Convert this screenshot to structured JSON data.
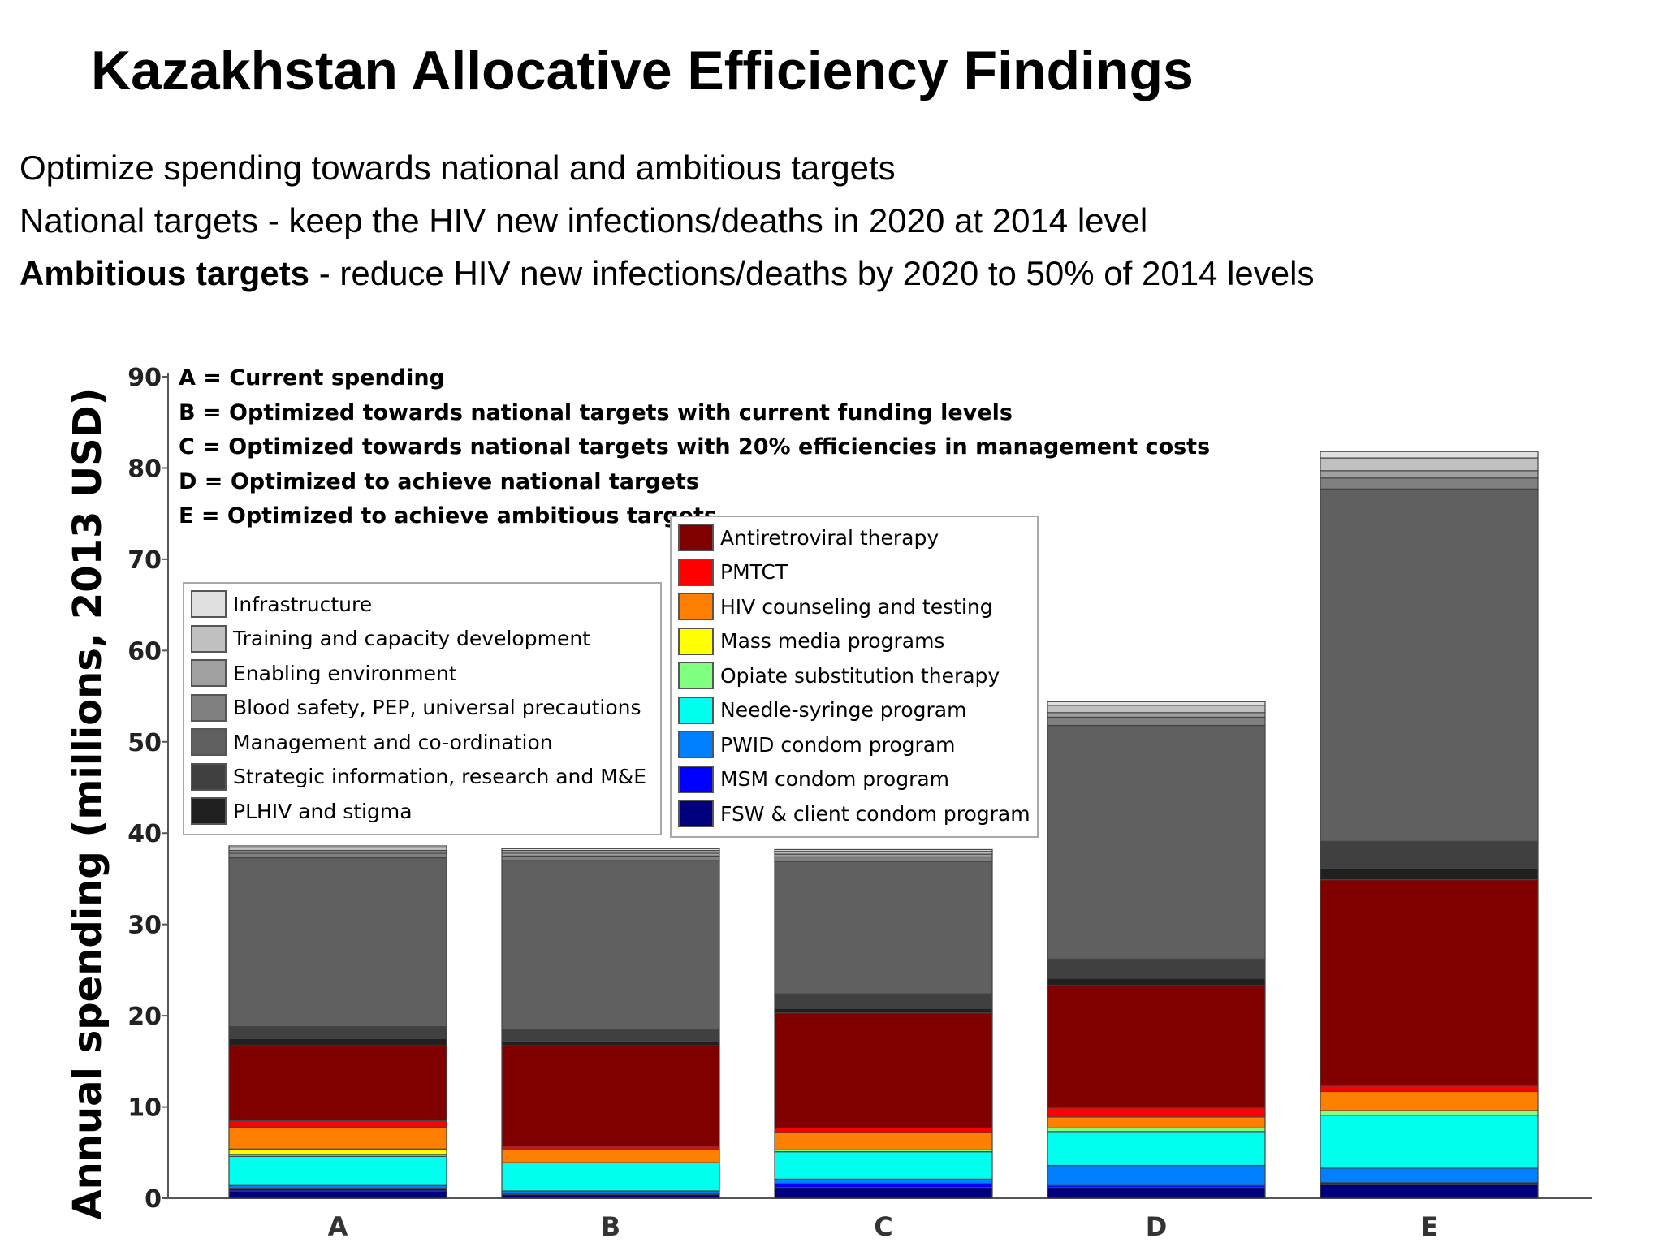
{
  "header": {
    "title": "Kazakhstan Allocative Efficiency Findings",
    "line1": "Optimize spending towards national and ambitious targets",
    "line2": "National targets - keep the HIV new infections/deaths in 2020 at 2014 level",
    "line3_bold": "Ambitious targets",
    "line3_rest": " - reduce HIV new infections/deaths by 2020 to 50% of 2014 levels"
  },
  "chart_data": {
    "type": "bar",
    "stacked": true,
    "title": "",
    "xlabel": "",
    "ylabel": "Annual spending (millions, 2013 USD)",
    "ylim": [
      0,
      90
    ],
    "yticks": [
      0,
      10,
      20,
      30,
      40,
      50,
      60,
      70,
      80,
      90
    ],
    "categories": [
      "A",
      "B",
      "C",
      "D",
      "E"
    ],
    "scenario_labels": [
      "A = Current spending",
      "B = Optimized towards national targets with current funding levels",
      "C = Optimized towards national targets with 20% efficiencies in management costs",
      "D = Optimized to achieve national targets",
      "E = Optimized to achieve ambitious targets"
    ],
    "series": [
      {
        "name": "FSW & client condom program",
        "color": "#00007f",
        "values": [
          0.8,
          0.4,
          1.2,
          1.2,
          1.5
        ]
      },
      {
        "name": "MSM condom program",
        "color": "#0000ff",
        "values": [
          0.3,
          0.1,
          0.4,
          0.2,
          0.2
        ]
      },
      {
        "name": "PWID condom program",
        "color": "#0080ff",
        "values": [
          0.3,
          0.3,
          0.5,
          2.2,
          1.6
        ]
      },
      {
        "name": "Needle-syringe program",
        "color": "#00ffee",
        "values": [
          3.2,
          3.1,
          3.0,
          3.7,
          5.8
        ]
      },
      {
        "name": "Opiate substitution therapy",
        "color": "#80ff80",
        "values": [
          0.2,
          0.0,
          0.2,
          0.4,
          0.5
        ]
      },
      {
        "name": "Mass media programs",
        "color": "#ffff00",
        "values": [
          0.6,
          0.0,
          0.0,
          0.0,
          0.0
        ]
      },
      {
        "name": "HIV counseling and testing",
        "color": "#ff8000",
        "values": [
          2.4,
          1.5,
          1.9,
          1.2,
          2.1
        ]
      },
      {
        "name": "PMTCT",
        "color": "#ff0000",
        "values": [
          0.7,
          0.3,
          0.5,
          1.0,
          0.6
        ]
      },
      {
        "name": "Antiretroviral therapy",
        "color": "#800000",
        "values": [
          8.2,
          11.0,
          12.6,
          13.4,
          22.6
        ]
      },
      {
        "name": "PLHIV and stigma",
        "color": "#202020",
        "values": [
          0.8,
          0.5,
          0.5,
          0.8,
          1.2
        ]
      },
      {
        "name": "Strategic information, research and M&E",
        "color": "#404040",
        "values": [
          1.3,
          1.3,
          1.6,
          2.1,
          3.0
        ]
      },
      {
        "name": "Management and co-ordination",
        "color": "#606060",
        "values": [
          18.5,
          18.5,
          14.5,
          25.6,
          38.6
        ]
      },
      {
        "name": "Blood safety, PEP, universal precautions",
        "color": "#808080",
        "values": [
          0.5,
          0.5,
          0.5,
          0.9,
          1.2
        ]
      },
      {
        "name": "Enabling environment",
        "color": "#a0a0a0",
        "values": [
          0.3,
          0.3,
          0.3,
          0.5,
          0.8
        ]
      },
      {
        "name": "Training and capacity development",
        "color": "#c0c0c0",
        "values": [
          0.3,
          0.3,
          0.3,
          0.8,
          1.4
        ]
      },
      {
        "name": "Infrastructure",
        "color": "#e0e0e0",
        "values": [
          0.2,
          0.2,
          0.2,
          0.4,
          0.7
        ]
      }
    ],
    "legend_left": [
      "Infrastructure",
      "Training and capacity development",
      "Enabling environment",
      "Blood safety, PEP, universal precautions",
      "Management and co-ordination",
      "Strategic information, research and M&E",
      "PLHIV and stigma"
    ],
    "legend_right": [
      "Antiretroviral therapy",
      "PMTCT",
      "HIV counseling and testing",
      "Mass media programs",
      "Opiate substitution therapy",
      "Needle-syringe program",
      "PWID condom program",
      "MSM condom program",
      "FSW & client condom program"
    ],
    "legend_placement": "upper-left inside plot",
    "grid": false
  }
}
